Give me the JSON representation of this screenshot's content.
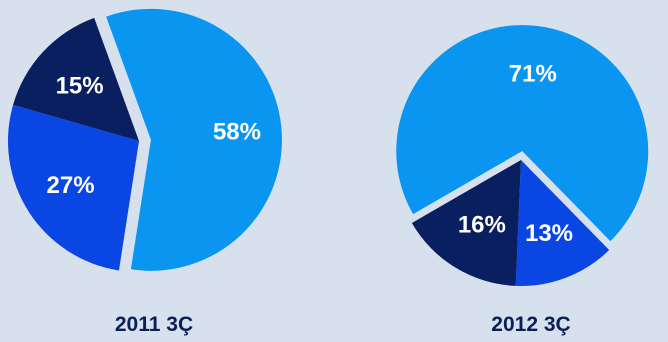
{
  "chart_data": [
    {
      "type": "pie",
      "title": "2011 3Ç",
      "slices": [
        {
          "label": "58%",
          "value": 58,
          "color": "#0a96f0",
          "exploded": true
        },
        {
          "label": "27%",
          "value": 27,
          "color": "#0a46e4",
          "exploded": false
        },
        {
          "label": "15%",
          "value": 15,
          "color": "#0a1f60",
          "exploded": false
        }
      ]
    },
    {
      "type": "pie",
      "title": "2012 3Ç",
      "slices": [
        {
          "label": "71%",
          "value": 71,
          "color": "#0a96f0",
          "exploded": true
        },
        {
          "label": "13%",
          "value": 13,
          "color": "#0a46e4",
          "exploded": false
        },
        {
          "label": "16%",
          "value": 16,
          "color": "#0a1f60",
          "exploded": false
        }
      ]
    }
  ]
}
